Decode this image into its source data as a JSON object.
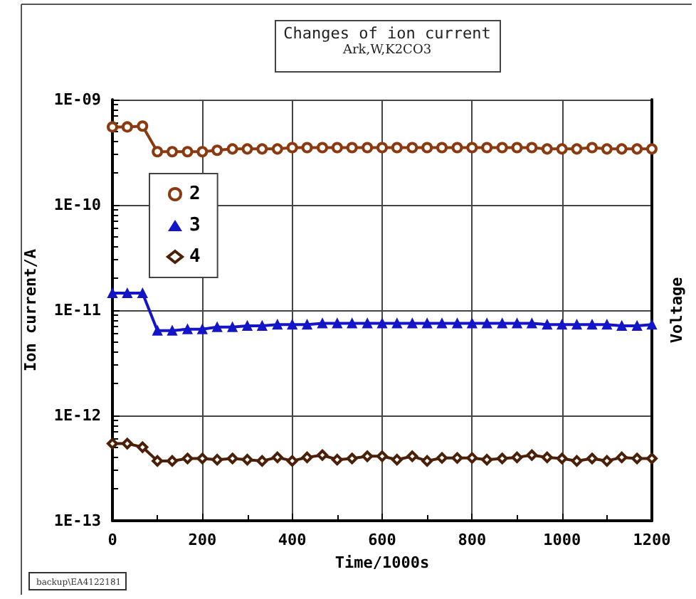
{
  "chart_data": {
    "type": "line",
    "title": "Changes of ion current",
    "subtitle": "Ark,W,K2CO3",
    "xlabel": "Time/1000s",
    "ylabel": "Ion current/A",
    "y2label": "Voltage",
    "annotations": [
      "backup\\EA4122181"
    ],
    "x": [
      0,
      33,
      67,
      100,
      133,
      167,
      200,
      233,
      267,
      300,
      333,
      367,
      400,
      433,
      467,
      500,
      533,
      567,
      600,
      633,
      667,
      700,
      733,
      767,
      800,
      833,
      867,
      900,
      933,
      967,
      1000,
      1033,
      1067,
      1100,
      1133,
      1167,
      1200
    ],
    "series": [
      {
        "name": "2",
        "color": "#8b3a10",
        "marker": "circle",
        "values": [
          5.5e-10,
          5.5e-10,
          5.6e-10,
          3.2e-10,
          3.2e-10,
          3.2e-10,
          3.2e-10,
          3.3e-10,
          3.4e-10,
          3.4e-10,
          3.4e-10,
          3.4e-10,
          3.5e-10,
          3.5e-10,
          3.5e-10,
          3.5e-10,
          3.5e-10,
          3.5e-10,
          3.5e-10,
          3.5e-10,
          3.5e-10,
          3.5e-10,
          3.5e-10,
          3.5e-10,
          3.5e-10,
          3.5e-10,
          3.5e-10,
          3.5e-10,
          3.5e-10,
          3.4e-10,
          3.4e-10,
          3.4e-10,
          3.5e-10,
          3.4e-10,
          3.4e-10,
          3.4e-10,
          3.4e-10
        ]
      },
      {
        "name": "3",
        "color": "#1414c8",
        "marker": "triangle",
        "values": [
          1.45e-11,
          1.45e-11,
          1.45e-11,
          6.4e-12,
          6.4e-12,
          6.6e-12,
          6.6e-12,
          6.9e-12,
          6.9e-12,
          7.1e-12,
          7.1e-12,
          7.3e-12,
          7.3e-12,
          7.3e-12,
          7.5e-12,
          7.5e-12,
          7.5e-12,
          7.5e-12,
          7.5e-12,
          7.5e-12,
          7.5e-12,
          7.5e-12,
          7.5e-12,
          7.5e-12,
          7.5e-12,
          7.5e-12,
          7.5e-12,
          7.5e-12,
          7.5e-12,
          7.3e-12,
          7.3e-12,
          7.3e-12,
          7.3e-12,
          7.3e-12,
          7.1e-12,
          7.1e-12,
          7.3e-12
        ]
      },
      {
        "name": "4",
        "color": "#4a2008",
        "marker": "diamond",
        "values": [
          5.4e-13,
          5.4e-13,
          5e-13,
          3.7e-13,
          3.7e-13,
          3.9e-13,
          3.9e-13,
          3.8e-13,
          3.9e-13,
          3.8e-13,
          3.7e-13,
          4e-13,
          3.7e-13,
          4e-13,
          4.2e-13,
          3.8e-13,
          3.9e-13,
          4.1e-13,
          4.1e-13,
          3.8e-13,
          4.1e-13,
          3.7e-13,
          3.95e-13,
          3.95e-13,
          3.95e-13,
          3.8e-13,
          3.9e-13,
          4e-13,
          4.2e-13,
          4e-13,
          3.9e-13,
          3.7e-13,
          3.9e-13,
          3.7e-13,
          4e-13,
          3.9e-13,
          3.9e-13
        ]
      }
    ],
    "xlim": [
      0,
      1200
    ],
    "xticks": [
      0,
      200,
      400,
      600,
      800,
      1000,
      1200
    ],
    "ylim": [
      1e-13,
      1e-09
    ],
    "yticks": [
      {
        "value": 1e-13,
        "label": "1E-13"
      },
      {
        "value": 1e-12,
        "label": "1E-12"
      },
      {
        "value": 1e-11,
        "label": "1E-11"
      },
      {
        "value": 1e-10,
        "label": "1E-10"
      },
      {
        "value": 1e-09,
        "label": "1E-09"
      }
    ],
    "log": "y",
    "grid": true,
    "legend": "top left",
    "line_style": "solid"
  }
}
